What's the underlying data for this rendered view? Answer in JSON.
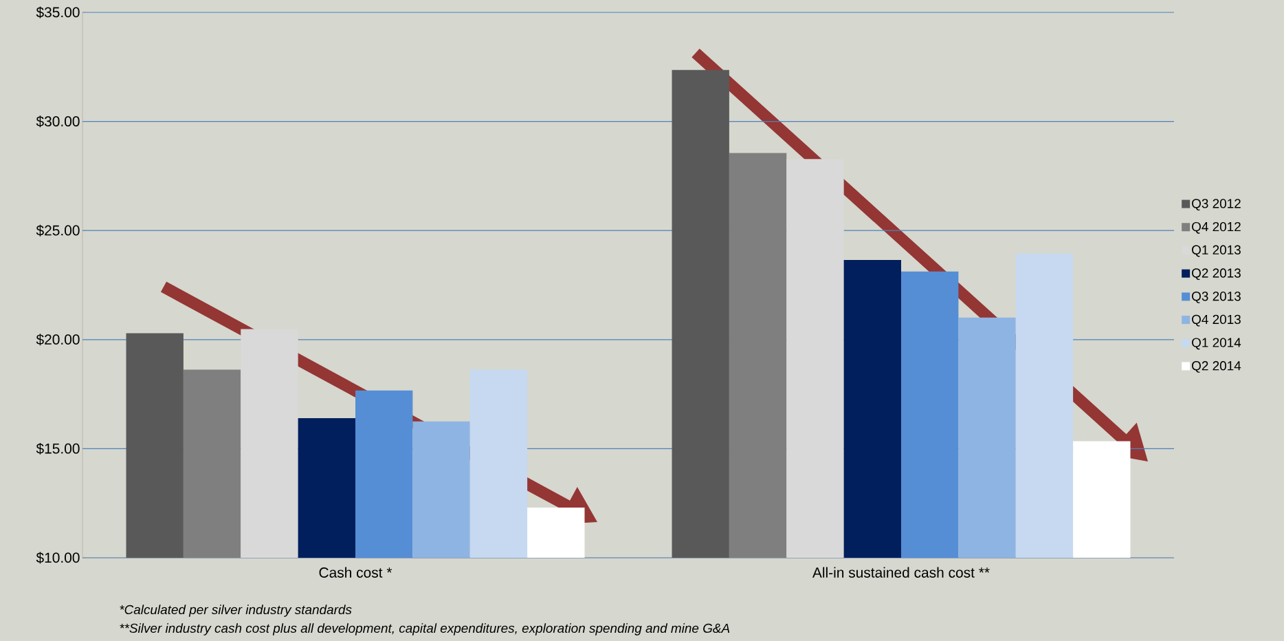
{
  "chart_data": {
    "type": "bar",
    "categories": [
      "Cash cost *",
      "All-in sustained cash cost **"
    ],
    "series": [
      {
        "name": "Q3 2012",
        "color": "#595959",
        "values": [
          20.29,
          32.36
        ]
      },
      {
        "name": "Q4 2012",
        "color": "#7f7f7f",
        "values": [
          18.62,
          28.55
        ]
      },
      {
        "name": "Q1 2013",
        "color": "#d9d9d9",
        "values": [
          20.48,
          28.28
        ]
      },
      {
        "name": "Q2 2013",
        "color": "#001f5c",
        "values": [
          16.4,
          23.65
        ]
      },
      {
        "name": "Q3 2013",
        "color": "#558ed5",
        "values": [
          17.67,
          23.12
        ]
      },
      {
        "name": "Q4 2013",
        "color": "#8eb4e3",
        "values": [
          16.25,
          21.01
        ]
      },
      {
        "name": "Q1 2014",
        "color": "#c6d9f1",
        "values": [
          18.63,
          23.94
        ]
      },
      {
        "name": "Q2 2014",
        "color": "#ffffff",
        "values": [
          12.3,
          15.34
        ]
      }
    ],
    "ylim": [
      10,
      35
    ],
    "yticks": [
      {
        "value": 10,
        "label": "$10.00"
      },
      {
        "value": 15,
        "label": "$15.00"
      },
      {
        "value": 20,
        "label": "$20.00"
      },
      {
        "value": 25,
        "label": "$25.00"
      },
      {
        "value": 30,
        "label": "$30.00"
      },
      {
        "value": 35,
        "label": "$35.00"
      }
    ],
    "grid": "y",
    "legend": "right",
    "annotations": [
      "*Calculated per silver industry standards",
      "**Silver industry cash cost plus all development, capital expenditures, exploration spending and mine G&A"
    ]
  }
}
